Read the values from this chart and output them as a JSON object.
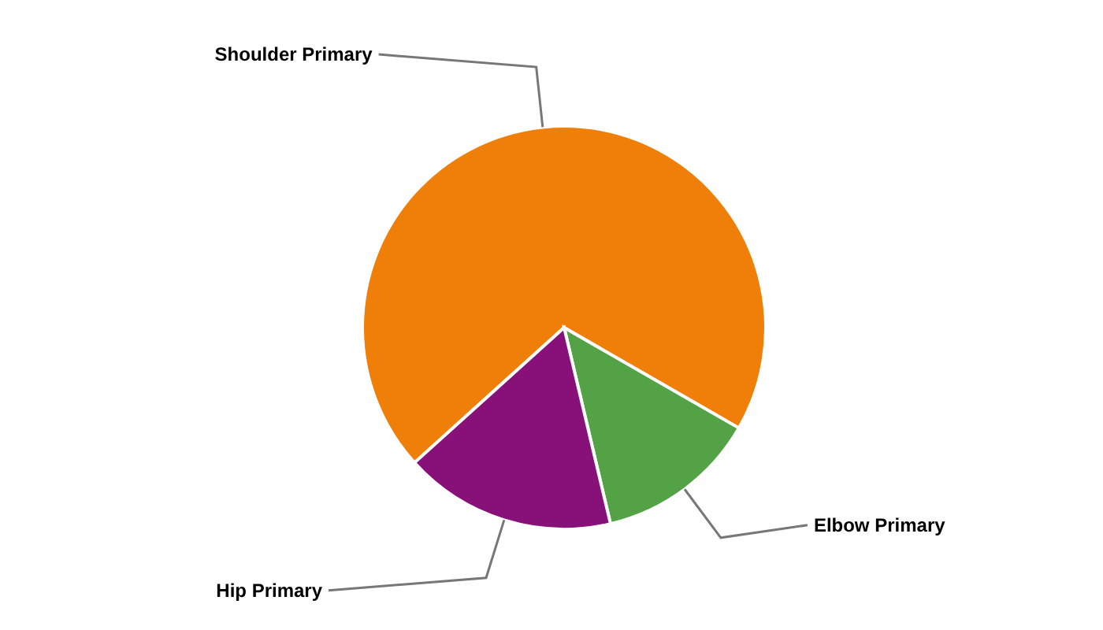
{
  "chart_data": {
    "type": "pie",
    "categories": [
      "Shoulder Primary",
      "Elbow Primary",
      "Hip Primary"
    ],
    "values": [
      70,
      13,
      17
    ],
    "colors": [
      "#f07f09",
      "#53a245",
      "#881179"
    ],
    "legend": false
  }
}
